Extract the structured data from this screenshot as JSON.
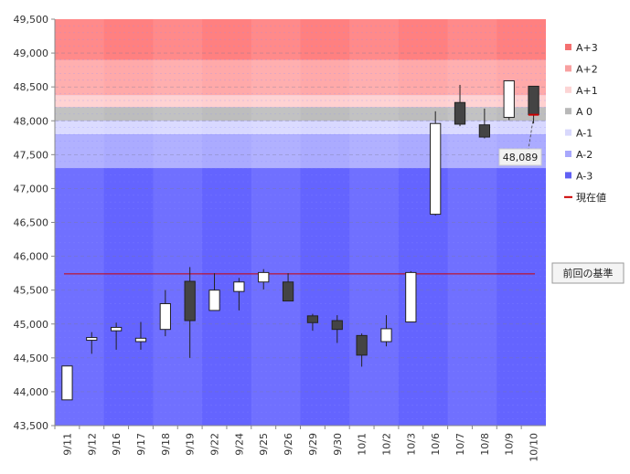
{
  "chart_data": {
    "type": "candlestick",
    "ylim": [
      43500,
      49500
    ],
    "yticks": [
      43500,
      44000,
      44500,
      45000,
      45500,
      46000,
      46500,
      47000,
      47500,
      48000,
      48500,
      49000,
      49500
    ],
    "ytick_labels": [
      "43,500",
      "44,000",
      "44,500",
      "45,000",
      "45,500",
      "46,000",
      "46,500",
      "47,000",
      "47,500",
      "48,000",
      "48,500",
      "49,000",
      "49,500"
    ],
    "categories": [
      "9/11",
      "9/12",
      "9/16",
      "9/17",
      "9/18",
      "9/19",
      "9/22",
      "9/24",
      "9/25",
      "9/26",
      "9/29",
      "9/30",
      "10/1",
      "10/2",
      "10/3",
      "10/6",
      "10/7",
      "10/8",
      "10/9",
      "10/10"
    ],
    "candles": [
      {
        "open": 43880,
        "high": 44380,
        "low": 43880,
        "close": 44380
      },
      {
        "open": 44760,
        "high": 44880,
        "low": 44560,
        "close": 44800
      },
      {
        "open": 44900,
        "high": 45020,
        "low": 44620,
        "close": 44950
      },
      {
        "open": 44740,
        "high": 45030,
        "low": 44620,
        "close": 44790
      },
      {
        "open": 44920,
        "high": 45500,
        "low": 44820,
        "close": 45300
      },
      {
        "open": 45630,
        "high": 45840,
        "low": 44500,
        "close": 45050
      },
      {
        "open": 45200,
        "high": 45750,
        "low": 45200,
        "close": 45500
      },
      {
        "open": 45480,
        "high": 45680,
        "low": 45200,
        "close": 45620
      },
      {
        "open": 45620,
        "high": 45810,
        "low": 45510,
        "close": 45760
      },
      {
        "open": 45620,
        "high": 45750,
        "low": 45340,
        "close": 45340
      },
      {
        "open": 45120,
        "high": 45150,
        "low": 44900,
        "close": 45020
      },
      {
        "open": 45050,
        "high": 45130,
        "low": 44720,
        "close": 44920
      },
      {
        "open": 44830,
        "high": 44860,
        "low": 44370,
        "close": 44540
      },
      {
        "open": 44740,
        "high": 45130,
        "low": 44670,
        "close": 44930
      },
      {
        "open": 45030,
        "high": 45780,
        "low": 45030,
        "close": 45760
      },
      {
        "open": 46620,
        "high": 48140,
        "low": 46600,
        "close": 47960
      },
      {
        "open": 48270,
        "high": 48530,
        "low": 47920,
        "close": 47950
      },
      {
        "open": 47940,
        "high": 48180,
        "low": 47740,
        "close": 47760
      },
      {
        "open": 48050,
        "high": 48590,
        "low": 48010,
        "close": 48590
      },
      {
        "open": 48510,
        "high": 48510,
        "low": 47960,
        "close": 48089
      }
    ],
    "bands": [
      {
        "name": "A+3",
        "from": 48900,
        "to": 49500,
        "color": "#ff8080"
      },
      {
        "name": "A+2",
        "from": 48380,
        "to": 48900,
        "color": "#ffa9a9"
      },
      {
        "name": "A+1",
        "from": 48200,
        "to": 48380,
        "color": "#ffd0d0"
      },
      {
        "name": "A 0",
        "from": 48000,
        "to": 48200,
        "color": "#bdbdbd"
      },
      {
        "name": "A-1",
        "from": 47800,
        "to": 48000,
        "color": "#d8d8ff"
      },
      {
        "name": "A-2",
        "from": 47300,
        "to": 47800,
        "color": "#ababff"
      },
      {
        "name": "A-3",
        "from": 43500,
        "to": 47300,
        "color": "#6464ff"
      }
    ],
    "previous_reference": {
      "label": "前回の基準",
      "value": 45740,
      "color": "#cc0000"
    },
    "current_value": {
      "label": "現在値",
      "value": 48089,
      "display": "48,089",
      "color": "#cc0000"
    },
    "legend": [
      {
        "label": "A+3",
        "color": "#f47070",
        "kind": "box"
      },
      {
        "label": "A+2",
        "color": "#f8a0a0",
        "kind": "box"
      },
      {
        "label": "A+1",
        "color": "#fcd4d4",
        "kind": "box"
      },
      {
        "label": "A 0",
        "color": "#b8b8b8",
        "kind": "box"
      },
      {
        "label": "A-1",
        "color": "#d8d8fc",
        "kind": "box"
      },
      {
        "label": "A-2",
        "color": "#a8a8fc",
        "kind": "box"
      },
      {
        "label": "A-3",
        "color": "#6060f4",
        "kind": "box"
      },
      {
        "label": "現在値",
        "color": "#cc0000",
        "kind": "line"
      }
    ],
    "legend_position": "right",
    "grid": true
  }
}
